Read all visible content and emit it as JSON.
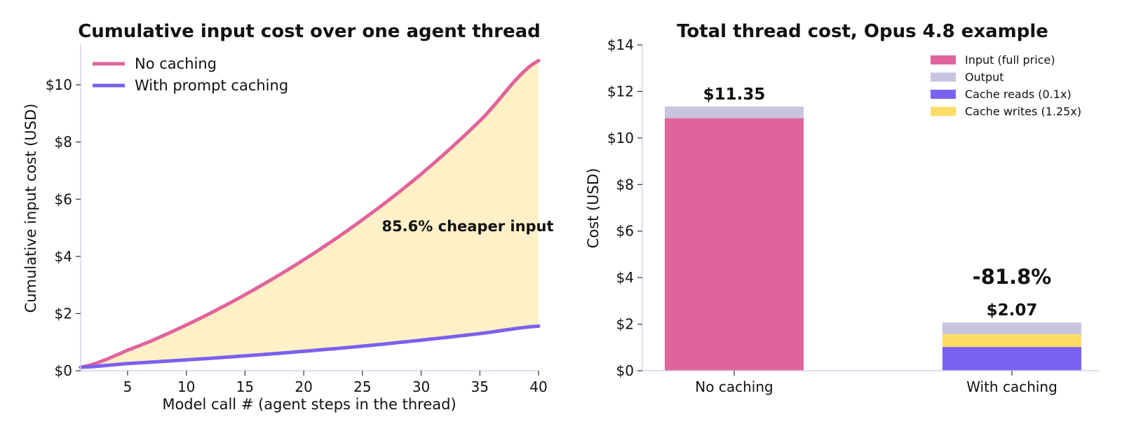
{
  "chart_data": [
    {
      "type": "area",
      "title": "Cumulative input cost over one agent thread",
      "xlabel": "Model call # (agent steps in the thread)",
      "ylabel": "Cumulative input cost (USD)",
      "xlim": [
        1,
        40
      ],
      "ylim": [
        0,
        11.4
      ],
      "x_ticks": [
        5,
        10,
        15,
        20,
        25,
        30,
        35,
        40
      ],
      "y_ticks": [
        0,
        2,
        4,
        6,
        8,
        10
      ],
      "y_tick_labels": [
        "$0",
        "$2",
        "$4",
        "$6",
        "$8",
        "$10"
      ],
      "x": [
        1,
        5,
        10,
        15,
        20,
        25,
        30,
        35,
        40
      ],
      "series": [
        {
          "name": "No caching",
          "color": "#e0649c",
          "values": [
            0.12,
            0.72,
            1.6,
            2.66,
            3.88,
            5.28,
            6.88,
            8.74,
            10.85
          ]
        },
        {
          "name": "With prompt caching",
          "color": "#7b61f0",
          "values": [
            0.12,
            0.25,
            0.38,
            0.52,
            0.68,
            0.86,
            1.07,
            1.3,
            1.56
          ]
        }
      ],
      "fill_between": {
        "color": "#fff1c7"
      },
      "annotation": {
        "text": "85.6% cheaper input",
        "color": "#8a6d00",
        "x": 33.0,
        "y": 5.0
      },
      "legend_position": "upper-left",
      "grid": false
    },
    {
      "type": "bar",
      "stacked": true,
      "title": "Total thread cost, Opus 4.8 example",
      "ylabel": "Cost (USD)",
      "ylim": [
        0,
        14
      ],
      "y_ticks": [
        0,
        2,
        4,
        6,
        8,
        10,
        12,
        14
      ],
      "y_tick_labels": [
        "$0",
        "$2",
        "$4",
        "$6",
        "$8",
        "$10",
        "$12",
        "$14"
      ],
      "categories": [
        "No caching",
        "With caching"
      ],
      "series": [
        {
          "name": "Input (full price)",
          "color": "#e0649c",
          "values": [
            10.85,
            0
          ]
        },
        {
          "name": "Cache reads (0.1x)",
          "color": "#7b61f0",
          "values": [
            0,
            1.02
          ]
        },
        {
          "name": "Cache writes (1.25x)",
          "color": "#fbdc64",
          "values": [
            0,
            0.55
          ]
        },
        {
          "name": "Output",
          "color": "#c8c3df",
          "values": [
            0.5,
            0.5
          ]
        }
      ],
      "legend_order": [
        "Input (full price)",
        "Output",
        "Cache reads (0.1x)",
        "Cache writes (1.25x)"
      ],
      "bar_totals": [
        "$11.35",
        "$2.07"
      ],
      "total_label_colors": [
        "#111111",
        "#5b44d8"
      ],
      "savings_label": {
        "text": "-81.8%",
        "color": "#5b44d8"
      },
      "legend_position": "upper-right",
      "grid": false
    }
  ]
}
